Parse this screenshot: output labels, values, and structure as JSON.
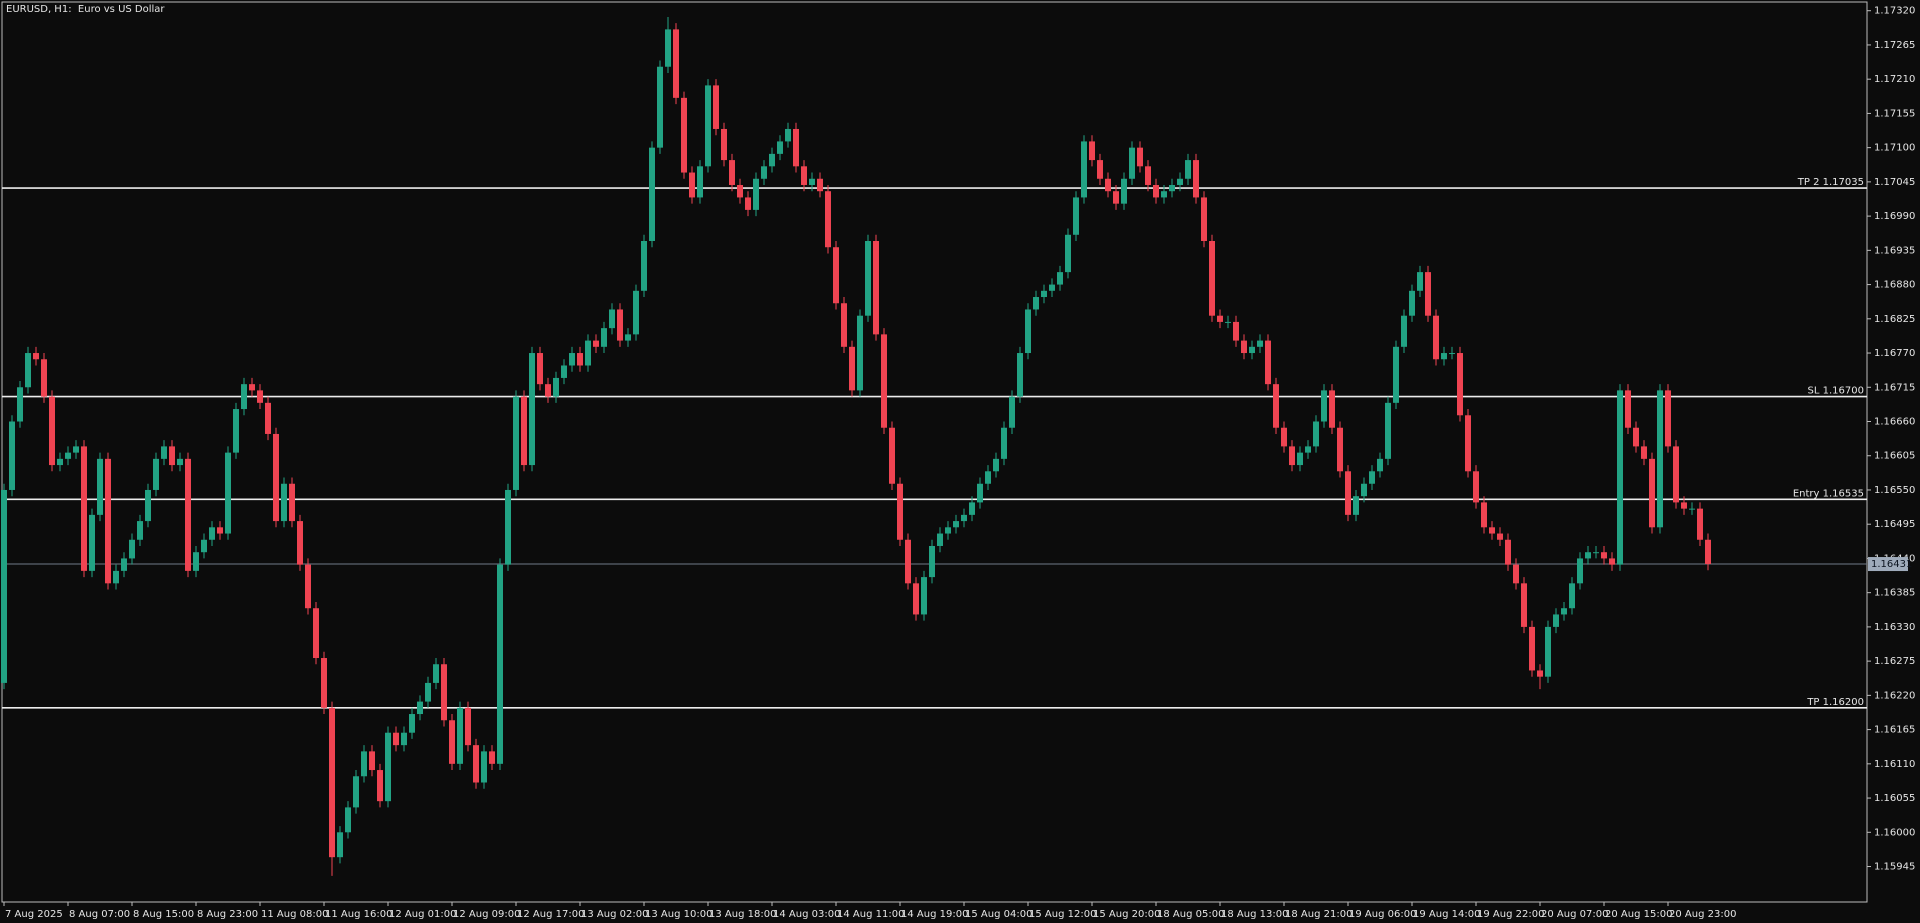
{
  "chart_data": {
    "type": "candlestick",
    "title": "EURUSD, H1:  Euro vs US Dollar",
    "categories": [
      "7 Aug 2025",
      null,
      null,
      null,
      null,
      null,
      null,
      null,
      "8 Aug 07:00",
      null,
      null,
      null,
      null,
      null,
      null,
      null,
      "8 Aug 15:00",
      null,
      null,
      null,
      null,
      null,
      null,
      null,
      "8 Aug 23:00",
      null,
      null,
      null,
      null,
      null,
      null,
      null,
      "11 Aug 08:00",
      null,
      null,
      null,
      null,
      null,
      null,
      null,
      "11 Aug 16:00",
      null,
      null,
      null,
      null,
      null,
      null,
      null,
      "12 Aug 01:00",
      null,
      null,
      null,
      null,
      null,
      null,
      null,
      "12 Aug 09:00",
      null,
      null,
      null,
      null,
      null,
      null,
      null,
      "12 Aug 17:00",
      null,
      null,
      null,
      null,
      null,
      null,
      null,
      "13 Aug 02:00",
      null,
      null,
      null,
      null,
      null,
      null,
      null,
      "13 Aug 10:00",
      null,
      null,
      null,
      null,
      null,
      null,
      null,
      "13 Aug 18:00",
      null,
      null,
      null,
      null,
      null,
      null,
      null,
      "14 Aug 03:00",
      null,
      null,
      null,
      null,
      null,
      null,
      null,
      "14 Aug 11:00",
      null,
      null,
      null,
      null,
      null,
      null,
      null,
      "14 Aug 19:00",
      null,
      null,
      null,
      null,
      null,
      null,
      null,
      "15 Aug 04:00",
      null,
      null,
      null,
      null,
      null,
      null,
      null,
      "15 Aug 12:00",
      null,
      null,
      null,
      null,
      null,
      null,
      null,
      "15 Aug 20:00",
      null,
      null,
      null,
      null,
      null,
      null,
      null,
      "18 Aug 05:00",
      null,
      null,
      null,
      null,
      null,
      null,
      null,
      "18 Aug 13:00",
      null,
      null,
      null,
      null,
      null,
      null,
      null,
      "18 Aug 21:00",
      null,
      null,
      null,
      null,
      null,
      null,
      null,
      "19 Aug 06:00",
      null,
      null,
      null,
      null,
      null,
      null,
      null,
      "19 Aug 14:00",
      null,
      null,
      null,
      null,
      null,
      null,
      null,
      "19 Aug 22:00",
      null,
      null,
      null,
      null,
      null,
      null,
      null,
      "20 Aug 07:00",
      null,
      null,
      null,
      null,
      null,
      null,
      null,
      "20 Aug 15:00",
      null,
      null,
      null,
      null,
      null,
      null,
      null,
      "20 Aug 23:00",
      null,
      null,
      null,
      null,
      null
    ],
    "open": [
      1.1624,
      1.1655,
      1.1666,
      1.16715,
      1.1677,
      1.1676,
      1.167,
      1.1659,
      1.166,
      1.1661,
      1.1662,
      1.1642,
      1.1651,
      1.166,
      1.164,
      1.1642,
      1.1644,
      1.1647,
      1.165,
      1.1655,
      1.166,
      1.1662,
      1.1659,
      1.166,
      1.1642,
      1.1645,
      1.1647,
      1.1649,
      1.1648,
      1.1661,
      1.1668,
      1.1672,
      1.1671,
      1.1669,
      1.1664,
      1.165,
      1.1656,
      1.165,
      1.1643,
      1.1636,
      1.1628,
      1.162,
      1.1596,
      1.16,
      1.1604,
      1.1609,
      1.1613,
      1.161,
      1.1605,
      1.1616,
      1.1614,
      1.1616,
      1.1619,
      1.1621,
      1.1624,
      1.1627,
      1.1618,
      1.1611,
      1.162,
      1.1614,
      1.1608,
      1.1613,
      1.1611,
      1.1643,
      1.1655,
      1.167,
      1.1659,
      1.1677,
      1.1672,
      1.167,
      1.1673,
      1.1675,
      1.1677,
      1.1675,
      1.1679,
      1.1678,
      1.1681,
      1.1684,
      1.1679,
      1.168,
      1.1687,
      1.1695,
      1.171,
      1.1723,
      1.1729,
      1.1718,
      1.1706,
      1.1702,
      1.1707,
      1.172,
      1.1713,
      1.1708,
      1.1704,
      1.1702,
      1.17,
      1.1705,
      1.1707,
      1.1709,
      1.1711,
      1.1713,
      1.1707,
      1.1704,
      1.1705,
      1.1703,
      1.1694,
      1.1685,
      1.1678,
      1.1671,
      1.1683,
      1.1695,
      1.168,
      1.1665,
      1.1656,
      1.1647,
      1.164,
      1.1635,
      1.1641,
      1.1646,
      1.1648,
      1.1649,
      1.165,
      1.1651,
      1.1653,
      1.1656,
      1.1658,
      1.166,
      1.1665,
      1.167,
      1.1677,
      1.1684,
      1.1686,
      1.1687,
      1.1688,
      1.169,
      1.1696,
      1.1702,
      1.1711,
      1.1708,
      1.1705,
      1.1703,
      1.1701,
      1.1705,
      1.171,
      1.1707,
      1.1704,
      1.1702,
      1.1703,
      1.1704,
      1.1705,
      1.1708,
      1.1702,
      1.1695,
      1.1683,
      1.1682,
      1.1682,
      1.1679,
      1.1677,
      1.1678,
      1.1679,
      1.1672,
      1.1665,
      1.1662,
      1.1659,
      1.1661,
      1.1662,
      1.1666,
      1.1671,
      1.1665,
      1.1658,
      1.1651,
      1.1654,
      1.1656,
      1.1658,
      1.166,
      1.1669,
      1.1678,
      1.1683,
      1.1687,
      1.169,
      1.1683,
      1.1676,
      1.1677,
      1.1677,
      1.1667,
      1.1658,
      1.1653,
      1.1649,
      1.1648,
      1.1647,
      1.1643,
      1.164,
      1.1633,
      1.1626,
      1.1625,
      1.1633,
      1.1635,
      1.1636,
      1.164,
      1.1644,
      1.1645,
      1.1645,
      1.1644,
      1.1643,
      1.1671,
      1.1665,
      1.1662,
      1.166,
      1.1649,
      1.1671,
      1.1662,
      1.1653,
      1.1652,
      1.1652,
      1.1647
    ],
    "high": [
      1.1656,
      1.1667,
      1.16725,
      1.1678,
      1.1678,
      1.1677,
      1.1671,
      1.1661,
      1.1662,
      1.1663,
      1.1663,
      1.1652,
      1.1661,
      1.1661,
      1.1643,
      1.1645,
      1.1648,
      1.1651,
      1.1656,
      1.1661,
      1.1663,
      1.1663,
      1.1661,
      1.1661,
      1.1646,
      1.1648,
      1.165,
      1.165,
      1.1662,
      1.1669,
      1.1673,
      1.1673,
      1.1672,
      1.167,
      1.1665,
      1.1657,
      1.1657,
      1.1651,
      1.1644,
      1.1637,
      1.1629,
      1.1621,
      1.1601,
      1.1605,
      1.161,
      1.1614,
      1.1614,
      1.1611,
      1.1617,
      1.1617,
      1.1617,
      1.162,
      1.1622,
      1.1625,
      1.1628,
      1.1628,
      1.1619,
      1.1621,
      1.1621,
      1.1615,
      1.1614,
      1.1614,
      1.1644,
      1.1656,
      1.1671,
      1.1671,
      1.1678,
      1.1678,
      1.1673,
      1.1674,
      1.1676,
      1.1678,
      1.1678,
      1.168,
      1.168,
      1.1682,
      1.1685,
      1.1685,
      1.1681,
      1.1688,
      1.1696,
      1.1711,
      1.1724,
      1.1731,
      1.173,
      1.1719,
      1.1707,
      1.1708,
      1.1721,
      1.1721,
      1.1714,
      1.1709,
      1.1705,
      1.1703,
      1.1706,
      1.1708,
      1.171,
      1.1712,
      1.1714,
      1.1714,
      1.1708,
      1.1706,
      1.1706,
      1.1704,
      1.1695,
      1.1686,
      1.1679,
      1.1684,
      1.1696,
      1.1696,
      1.1681,
      1.1666,
      1.1657,
      1.1648,
      1.1641,
      1.1642,
      1.1647,
      1.1649,
      1.165,
      1.1651,
      1.1652,
      1.1654,
      1.1657,
      1.1659,
      1.1661,
      1.1666,
      1.1671,
      1.1678,
      1.1685,
      1.1687,
      1.1688,
      1.1689,
      1.1691,
      1.1697,
      1.1703,
      1.1712,
      1.1712,
      1.1709,
      1.1706,
      1.1704,
      1.1706,
      1.1711,
      1.1711,
      1.1708,
      1.1705,
      1.1704,
      1.1705,
      1.1706,
      1.1709,
      1.1709,
      1.1703,
      1.1696,
      1.1684,
      1.1683,
      1.1683,
      1.168,
      1.1679,
      1.168,
      1.168,
      1.1673,
      1.1666,
      1.1663,
      1.1662,
      1.1663,
      1.1667,
      1.1672,
      1.1672,
      1.1666,
      1.1659,
      1.1655,
      1.1657,
      1.1659,
      1.1661,
      1.167,
      1.1679,
      1.1684,
      1.1688,
      1.1691,
      1.1691,
      1.1684,
      1.1678,
      1.1678,
      1.1678,
      1.1668,
      1.1659,
      1.1654,
      1.165,
      1.1649,
      1.1648,
      1.1644,
      1.1641,
      1.1634,
      1.1627,
      1.1634,
      1.1636,
      1.1637,
      1.1641,
      1.1645,
      1.1646,
      1.1646,
      1.1646,
      1.1645,
      1.1672,
      1.1672,
      1.1666,
      1.1663,
      1.1661,
      1.1672,
      1.1672,
      1.1663,
      1.1654,
      1.1653,
      1.1653,
      1.1648
    ],
    "low": [
      1.1623,
      1.1654,
      1.1665,
      1.16705,
      1.1675,
      1.1669,
      1.1658,
      1.1658,
      1.1659,
      1.166,
      1.1641,
      1.1641,
      1.165,
      1.1639,
      1.1639,
      1.1641,
      1.1643,
      1.1646,
      1.1649,
      1.1654,
      1.1659,
      1.1658,
      1.1658,
      1.1641,
      1.1641,
      1.1644,
      1.1646,
      1.1647,
      1.1647,
      1.166,
      1.1667,
      1.167,
      1.1668,
      1.1663,
      1.1649,
      1.1649,
      1.1649,
      1.1642,
      1.1635,
      1.1627,
      1.1619,
      1.1593,
      1.1595,
      1.1599,
      1.1603,
      1.1608,
      1.1609,
      1.1604,
      1.1604,
      1.1613,
      1.1613,
      1.1615,
      1.1618,
      1.162,
      1.1623,
      1.1617,
      1.161,
      1.161,
      1.1613,
      1.1607,
      1.1607,
      1.161,
      1.161,
      1.1642,
      1.1654,
      1.1658,
      1.1658,
      1.1671,
      1.1669,
      1.1669,
      1.1672,
      1.1674,
      1.1674,
      1.1674,
      1.1677,
      1.1677,
      1.168,
      1.1678,
      1.1678,
      1.1679,
      1.1686,
      1.1694,
      1.1709,
      1.1722,
      1.1717,
      1.1705,
      1.1701,
      1.1701,
      1.1706,
      1.1712,
      1.1707,
      1.1703,
      1.1701,
      1.1699,
      1.1699,
      1.1704,
      1.1706,
      1.1708,
      1.171,
      1.1706,
      1.1703,
      1.1703,
      1.1702,
      1.1693,
      1.1684,
      1.1677,
      1.167,
      1.167,
      1.1682,
      1.1679,
      1.1664,
      1.1655,
      1.1646,
      1.1639,
      1.1634,
      1.1634,
      1.164,
      1.1645,
      1.1647,
      1.1648,
      1.1649,
      1.165,
      1.1652,
      1.1655,
      1.1657,
      1.1659,
      1.1664,
      1.1669,
      1.1676,
      1.1683,
      1.1685,
      1.1686,
      1.1687,
      1.1689,
      1.1695,
      1.1701,
      1.1707,
      1.1704,
      1.1702,
      1.17,
      1.17,
      1.1704,
      1.1706,
      1.1703,
      1.1701,
      1.1701,
      1.1702,
      1.1703,
      1.1704,
      1.1701,
      1.1694,
      1.1682,
      1.1681,
      1.1681,
      1.1678,
      1.1676,
      1.1676,
      1.1677,
      1.1671,
      1.1664,
      1.1661,
      1.1658,
      1.1658,
      1.166,
      1.1661,
      1.1665,
      1.1664,
      1.1657,
      1.165,
      1.165,
      1.1653,
      1.1655,
      1.1657,
      1.1659,
      1.1668,
      1.1677,
      1.1682,
      1.1686,
      1.1682,
      1.1675,
      1.1675,
      1.1676,
      1.1666,
      1.1657,
      1.1652,
      1.1648,
      1.1647,
      1.1646,
      1.1642,
      1.1639,
      1.1632,
      1.1625,
      1.1623,
      1.1624,
      1.1632,
      1.1634,
      1.1635,
      1.1639,
      1.1643,
      1.1644,
      1.1643,
      1.1642,
      1.1642,
      1.1664,
      1.1661,
      1.1659,
      1.1648,
      1.1648,
      1.1661,
      1.1652,
      1.1651,
      1.1651,
      1.1646,
      1.16421
    ],
    "close": [
      1.1655,
      1.1666,
      1.16715,
      1.1677,
      1.1676,
      1.167,
      1.1659,
      1.166,
      1.1661,
      1.1662,
      1.1642,
      1.1651,
      1.166,
      1.164,
      1.1642,
      1.1644,
      1.1647,
      1.165,
      1.1655,
      1.166,
      1.1662,
      1.1659,
      1.166,
      1.1642,
      1.1645,
      1.1647,
      1.1649,
      1.1648,
      1.1661,
      1.1668,
      1.1672,
      1.1671,
      1.1669,
      1.1664,
      1.165,
      1.1656,
      1.165,
      1.1643,
      1.1636,
      1.1628,
      1.162,
      1.1596,
      1.16,
      1.1604,
      1.1609,
      1.1613,
      1.161,
      1.1605,
      1.1616,
      1.1614,
      1.1616,
      1.1619,
      1.1621,
      1.1624,
      1.1627,
      1.1618,
      1.1611,
      1.162,
      1.1614,
      1.1608,
      1.1613,
      1.1611,
      1.1643,
      1.1655,
      1.167,
      1.1659,
      1.1677,
      1.1672,
      1.167,
      1.1673,
      1.1675,
      1.1677,
      1.1675,
      1.1679,
      1.1678,
      1.1681,
      1.1684,
      1.1679,
      1.168,
      1.1687,
      1.1695,
      1.171,
      1.1723,
      1.1729,
      1.1718,
      1.1706,
      1.1702,
      1.1707,
      1.172,
      1.1713,
      1.1708,
      1.1704,
      1.1702,
      1.17,
      1.1705,
      1.1707,
      1.1709,
      1.1711,
      1.1713,
      1.1707,
      1.1704,
      1.1705,
      1.1703,
      1.1694,
      1.1685,
      1.1678,
      1.1671,
      1.1683,
      1.1695,
      1.168,
      1.1665,
      1.1656,
      1.1647,
      1.164,
      1.1635,
      1.1641,
      1.1646,
      1.1648,
      1.1649,
      1.165,
      1.1651,
      1.1653,
      1.1656,
      1.1658,
      1.166,
      1.1665,
      1.167,
      1.1677,
      1.1684,
      1.1686,
      1.1687,
      1.1688,
      1.169,
      1.1696,
      1.1702,
      1.1711,
      1.1708,
      1.1705,
      1.1703,
      1.1701,
      1.1705,
      1.171,
      1.1707,
      1.1704,
      1.1702,
      1.1703,
      1.1704,
      1.1705,
      1.1708,
      1.1702,
      1.1695,
      1.1683,
      1.1682,
      1.1682,
      1.1679,
      1.1677,
      1.1678,
      1.1679,
      1.1672,
      1.1665,
      1.1662,
      1.1659,
      1.1661,
      1.1662,
      1.1666,
      1.1671,
      1.1665,
      1.1658,
      1.1651,
      1.1654,
      1.1656,
      1.1658,
      1.166,
      1.1669,
      1.1678,
      1.1683,
      1.1687,
      1.169,
      1.1683,
      1.1676,
      1.1677,
      1.1677,
      1.1667,
      1.1658,
      1.1653,
      1.1649,
      1.1648,
      1.1647,
      1.1643,
      1.164,
      1.1633,
      1.1626,
      1.1625,
      1.1633,
      1.1635,
      1.1636,
      1.164,
      1.1644,
      1.1645,
      1.1645,
      1.1644,
      1.1643,
      1.1671,
      1.1665,
      1.1662,
      1.166,
      1.1649,
      1.1671,
      1.1662,
      1.1653,
      1.1652,
      1.1652,
      1.1647,
      1.16431
    ],
    "up_color": "#22a384",
    "down_color": "#ef4452",
    "ylim": [
      1.15888,
      1.17334
    ],
    "yticks": [
      {
        "value": 1.1732,
        "label": "1.17320"
      },
      1.17265,
      {
        "value": 1.1721,
        "label": "1.17210"
      },
      1.17155,
      {
        "value": 1.171,
        "label": "1.17100"
      },
      1.17045,
      {
        "value": 1.1699,
        "label": "1.16990"
      },
      1.16935,
      {
        "value": 1.1688,
        "label": "1.16880"
      },
      1.16825,
      {
        "value": 1.1677,
        "label": "1.16770"
      },
      1.16715,
      {
        "value": 1.1666,
        "label": "1.16660"
      },
      1.16605,
      {
        "value": 1.1655,
        "label": "1.16550"
      },
      1.16495,
      {
        "value": 1.1644,
        "label": "1.16440"
      },
      1.16385,
      {
        "value": 1.1633,
        "label": "1.16330"
      },
      1.16275,
      {
        "value": 1.1622,
        "label": "1.16220"
      },
      1.16165,
      {
        "value": 1.1611,
        "label": "1.16110"
      },
      1.16055,
      {
        "value": 1.16,
        "label": "1.16000"
      },
      1.15945
    ],
    "grid": false,
    "levels": [
      {
        "label": "TP 2 1.17035",
        "value": 1.17035
      },
      {
        "label": "SL 1.16700",
        "value": 1.167
      },
      {
        "label": "Entry 1.16535",
        "value": 1.16535
      },
      {
        "label": "TP 1.16200",
        "value": 1.162
      }
    ],
    "level_color": "#ededed",
    "current_price": 1.16431
  }
}
